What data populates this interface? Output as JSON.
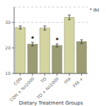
{
  "chart_data": {
    "type": "bar",
    "categories": [
      "CON",
      "CON + No1000",
      "TO",
      "TO + No1000",
      "FFA",
      "FFA +"
    ],
    "values": [
      28.0,
      21.5,
      27.8,
      21.0,
      32.0,
      22.5
    ],
    "errors": [
      0.6,
      0.7,
      0.8,
      0.6,
      0.9,
      0.7
    ],
    "colors": [
      "#d4d4a0",
      "#9b9b74",
      "#d4d4a0",
      "#9b9b74",
      "#d4d4a0",
      "#9b9b74"
    ],
    "star_labels": [
      null,
      "*",
      null,
      "*",
      null,
      null
    ],
    "xlabel": "Dietary Treatment Groups",
    "annotations": [
      "* (b)"
    ],
    "ylim": [
      10,
      36
    ],
    "yticks": [
      10,
      20,
      30
    ],
    "grid": true
  }
}
